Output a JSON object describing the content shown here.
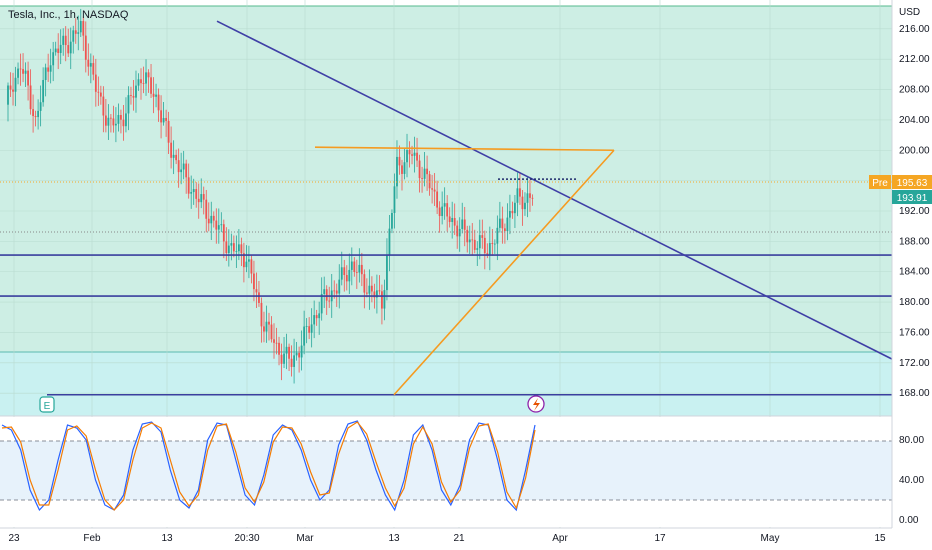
{
  "chart_data": [
    {
      "type": "candlestick",
      "title": "Tesla, Inc., 1h, NASDAQ",
      "currency": "USD",
      "ylim": [
        165,
        219
      ],
      "y_ticks": [
        "216.00",
        "212.00",
        "208.00",
        "204.00",
        "200.00",
        "196.00",
        "192.00",
        "188.00",
        "184.00",
        "180.00",
        "176.00",
        "172.00",
        "168.00"
      ],
      "x_ticks": [
        "23",
        "Feb",
        "13",
        "20:30",
        "Mar",
        "13",
        "21",
        "Apr",
        "17",
        "May",
        "15"
      ],
      "price_labels": [
        {
          "tag": "Pre",
          "value": "195.63",
          "color": "#f5a623"
        },
        {
          "value": "193.91",
          "color": "#26a69a"
        }
      ],
      "horizontal_lines": [
        186.2,
        180.8,
        167.8
      ],
      "trend_lines": [
        {
          "from": [
            "Feb 18",
            217.0
          ],
          "to": [
            "May 15",
            172.5
          ],
          "color": "#3f3fa6"
        },
        {
          "from": [
            "Mar 1",
            200.4
          ],
          "to": [
            "Apr 8",
            200.0
          ],
          "color": "#f59b21"
        },
        {
          "from": [
            "Mar 13",
            167.8
          ],
          "to": [
            "Apr 8",
            200.0
          ],
          "color": "#f59b21"
        }
      ],
      "markers": [
        {
          "label": "E",
          "type": "earnings"
        },
        {
          "type": "dividend-split-icon"
        }
      ],
      "candles_close": [
        206.0,
        211.5,
        204.0,
        212.5,
        214.0,
        216.0,
        208.0,
        203.0,
        205.0,
        210.0,
        207.0,
        200.0,
        196.0,
        193.0,
        190.0,
        187.0,
        186.0,
        178.0,
        174.0,
        172.0,
        176.0,
        180.0,
        182.0,
        185.0,
        182.0,
        180.0,
        198.0,
        199.5,
        196.0,
        192.0,
        190.0,
        188.0,
        187.0,
        190.0,
        193.5,
        193.9
      ]
    },
    {
      "type": "line",
      "title": "Stochastic",
      "ylim": [
        0,
        100
      ],
      "y_ticks": [
        "80.00",
        "40.00",
        "0.00"
      ],
      "bands": [
        20,
        80
      ],
      "series": [
        {
          "values": [
            95,
            90,
            70,
            30,
            10,
            20,
            60,
            95,
            92,
            80,
            40,
            15,
            10,
            25,
            70,
            96,
            98,
            88,
            50,
            20,
            12,
            30,
            80,
            97,
            95,
            60,
            25,
            15,
            45,
            85,
            95,
            90,
            70,
            40,
            20,
            30,
            75,
            96,
            99,
            80,
            50,
            25,
            10,
            40,
            85,
            95,
            70,
            30,
            15,
            35,
            80,
            97,
            95,
            60,
            20,
            10,
            50,
            95
          ]
        },
        {
          "values": [
            92,
            93,
            78,
            40,
            15,
            15,
            50,
            90,
            94,
            84,
            50,
            20,
            10,
            20,
            60,
            92,
            97,
            92,
            60,
            28,
            14,
            25,
            70,
            94,
            96,
            68,
            32,
            18,
            38,
            78,
            93,
            92,
            76,
            48,
            25,
            27,
            66,
            92,
            98,
            86,
            58,
            32,
            14,
            32,
            76,
            93,
            76,
            38,
            18,
            30,
            72,
            94,
            96,
            68,
            28,
            12,
            42,
            90
          ]
        }
      ]
    }
  ]
}
